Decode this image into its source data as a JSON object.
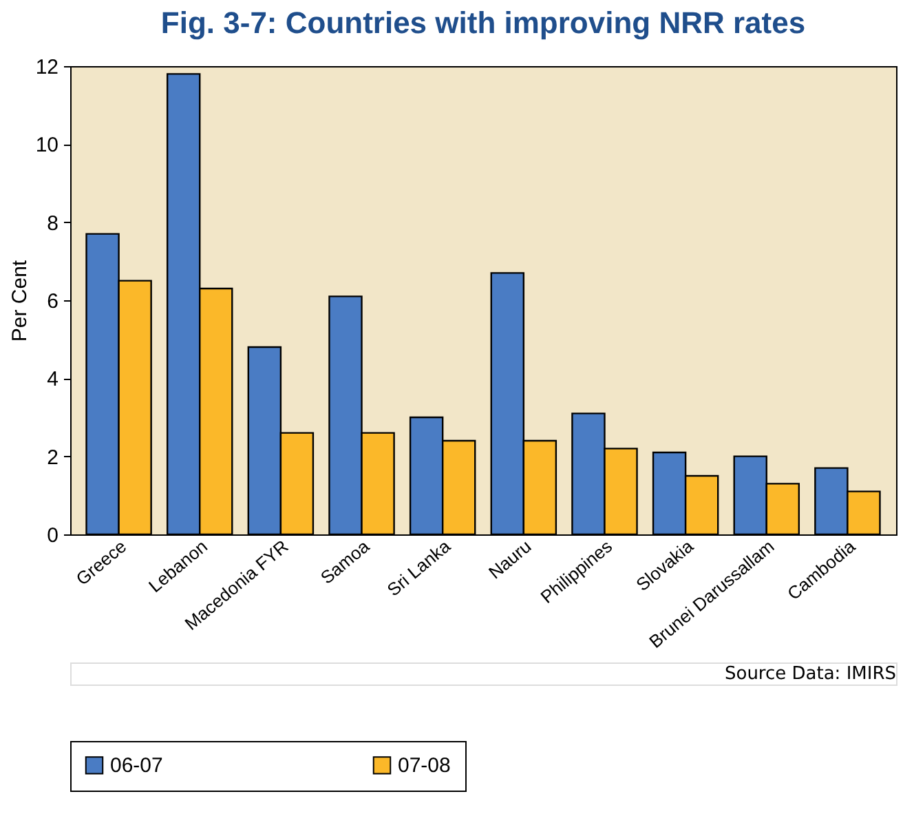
{
  "chart_data": {
    "type": "bar",
    "title": "Fig. 3-7: Countries with improving NRR rates",
    "ylabel": "Per Cent",
    "categories": [
      "Greece",
      "Lebanon",
      "Macedonia FYR",
      "Samoa",
      "Sri Lanka",
      "Nauru",
      "Philippines",
      "Slovakia",
      "Brunei Darussallam",
      "Cambodia"
    ],
    "series": [
      {
        "name": "06-07",
        "color": "#4a7cc4",
        "values": [
          7.7,
          11.8,
          4.8,
          6.1,
          3.0,
          6.7,
          3.1,
          2.1,
          2.0,
          1.7
        ]
      },
      {
        "name": "07-08",
        "color": "#fbb829",
        "values": [
          6.5,
          6.3,
          2.6,
          2.6,
          2.4,
          2.4,
          2.2,
          1.5,
          1.3,
          1.1
        ]
      }
    ],
    "ylim": [
      0,
      12
    ],
    "yticks": [
      0,
      2,
      4,
      6,
      8,
      10,
      12
    ],
    "grid": false,
    "legend": "bottom",
    "annotations": [
      "Source Data: IMIRS"
    ]
  }
}
